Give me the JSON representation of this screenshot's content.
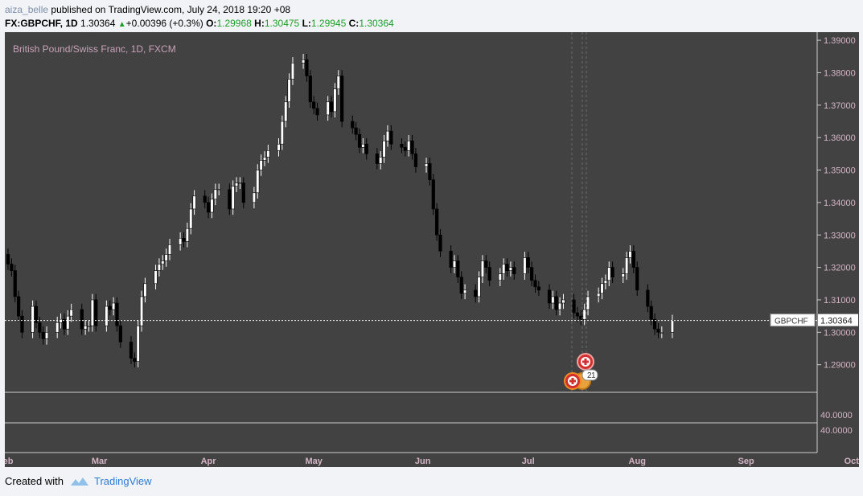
{
  "header": {
    "username": "aiza_belle",
    "published_text": "published on TradingView.com, July 24, 2018 19:20 +08",
    "symbol": "FX:GBPCHF, 1D",
    "last": "1.30364",
    "change": "+0.00396 (+0.3%)",
    "o_label": "O:",
    "o_value": "1.29968",
    "h_label": "H:",
    "h_value": "1.30475",
    "l_label": "L:",
    "l_value": "1.29945",
    "c_label": "C:",
    "c_value": "1.30364"
  },
  "chart_title": "British Pound/Swiss Franc, 1D, FXCM",
  "footer": {
    "created_with": "Created with",
    "brand": "TradingView"
  },
  "colors": {
    "background": "#424242",
    "up_candle": "#ffffff",
    "down_candle": "#000000",
    "title": "#c8a2b8",
    "axis_text": "#d3b4c4"
  },
  "chart_data": {
    "type": "candlestick",
    "symbol": "GBPCHF",
    "interval": "1D",
    "last_price": 1.30364,
    "price_label": "GBPCHF",
    "price_label_value": "1.30364",
    "ylim": [
      1.2815,
      1.3925
    ],
    "y_ticks": [
      "1.39000",
      "1.38000",
      "1.37000",
      "1.36000",
      "1.35000",
      "1.34000",
      "1.33000",
      "1.32000",
      "1.31000",
      "1.30000",
      "1.29000"
    ],
    "x_ticks": [
      {
        "label": "eb",
        "day": 0
      },
      {
        "label": "Mar",
        "day": 26
      },
      {
        "label": "Apr",
        "day": 57
      },
      {
        "label": "May",
        "day": 87
      },
      {
        "label": "Jun",
        "day": 118
      },
      {
        "label": "Jul",
        "day": 148
      },
      {
        "label": "Aug",
        "day": 179
      },
      {
        "label": "Sep",
        "day": 210
      },
      {
        "label": "Oct",
        "day": 240
      }
    ],
    "indicator_panes": [
      {
        "value": "40.0000"
      },
      {
        "value": "40.0000"
      }
    ],
    "event_markers": [
      {
        "count": "2"
      },
      {
        "count": "1"
      }
    ],
    "candles_note": "approximate daily OHLC read from chart, Feb–Jul 2018",
    "closes": [
      1.321,
      1.319,
      1.311,
      1.305,
      1.3,
      1.308,
      1.303,
      1.3,
      1.298,
      1.3,
      1.303,
      1.304,
      1.301,
      1.305,
      1.307,
      1.301,
      1.302,
      1.302,
      1.31,
      1.302,
      1.308,
      1.307,
      1.309,
      1.302,
      1.297,
      1.292,
      1.291,
      1.302,
      1.311,
      1.315,
      1.319,
      1.321,
      1.322,
      1.324,
      1.327,
      1.329,
      1.328,
      1.332,
      1.338,
      1.342,
      1.34,
      1.337,
      1.341,
      1.344,
      1.344,
      1.338,
      1.345,
      1.346,
      1.346,
      1.34,
      1.343,
      1.35,
      1.353,
      1.354,
      1.356,
      1.358,
      1.365,
      1.371,
      1.378,
      1.383,
      1.384,
      1.379,
      1.371,
      1.369,
      1.367,
      1.371,
      1.368,
      1.375,
      1.379,
      1.365,
      1.363,
      1.361,
      1.357,
      1.358,
      1.355,
      1.352,
      1.354,
      1.359,
      1.362,
      1.358,
      1.357,
      1.356,
      1.359,
      1.355,
      1.351,
      1.352,
      1.347,
      1.338,
      1.33,
      1.325,
      1.32,
      1.322,
      1.317,
      1.312,
      1.313,
      1.311,
      1.317,
      1.322,
      1.32,
      1.316,
      1.318,
      1.321,
      1.319,
      1.32,
      1.318,
      1.323,
      1.32,
      1.316,
      1.314,
      1.313,
      1.309,
      1.311,
      1.307,
      1.309,
      1.31,
      1.306,
      1.305,
      1.304,
      1.307,
      1.311,
      1.312,
      1.315,
      1.316,
      1.32,
      1.317,
      1.318,
      1.323,
      1.325,
      1.32,
      1.313,
      1.308,
      1.304,
      1.301,
      1.3,
      1.3,
      1.3036
    ],
    "x_start_day": -1
  }
}
